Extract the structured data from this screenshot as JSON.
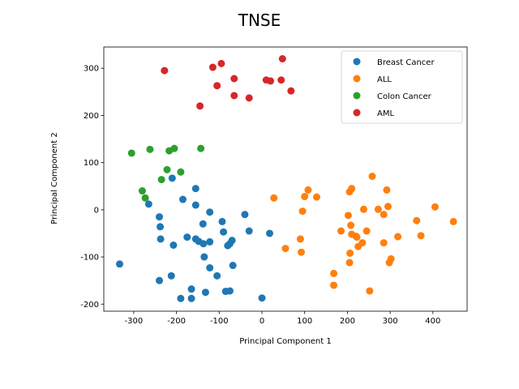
{
  "chart_data": {
    "type": "scatter",
    "title": "TNSE",
    "xlabel": "Principal Component 1",
    "ylabel": "Principal Component 2",
    "xlim": [
      -370,
      480
    ],
    "ylim": [
      -215,
      345
    ],
    "xticks": [
      -300,
      -200,
      -100,
      0,
      100,
      200,
      300,
      400
    ],
    "yticks": [
      -200,
      -100,
      0,
      100,
      200,
      300
    ],
    "grid": false,
    "legend_position": "top-right",
    "series": [
      {
        "name": "Breast Cancer",
        "color": "#1f77b4",
        "points": [
          [
            -333,
            -115
          ],
          [
            -265,
            12
          ],
          [
            -210,
            67
          ],
          [
            -240,
            -15
          ],
          [
            -238,
            -36
          ],
          [
            -237,
            -62
          ],
          [
            -207,
            -75
          ],
          [
            -240,
            -150
          ],
          [
            -212,
            -140
          ],
          [
            -190,
            -188
          ],
          [
            -165,
            -188
          ],
          [
            -165,
            -168
          ],
          [
            -185,
            22
          ],
          [
            -155,
            45
          ],
          [
            -155,
            10
          ],
          [
            -175,
            -58
          ],
          [
            -155,
            -62
          ],
          [
            -148,
            -67
          ],
          [
            -137,
            -72
          ],
          [
            -122,
            -68
          ],
          [
            -138,
            -30
          ],
          [
            -122,
            -5
          ],
          [
            -135,
            -100
          ],
          [
            -122,
            -123
          ],
          [
            -105,
            -140
          ],
          [
            -93,
            -25
          ],
          [
            -90,
            -47
          ],
          [
            -80,
            -76
          ],
          [
            -75,
            -72
          ],
          [
            -70,
            -65
          ],
          [
            -68,
            -118
          ],
          [
            -132,
            -175
          ],
          [
            -85,
            -173
          ],
          [
            -75,
            -172
          ],
          [
            -40,
            -10
          ],
          [
            -30,
            -45
          ],
          [
            18,
            -50
          ],
          [
            0,
            -187
          ]
        ]
      },
      {
        "name": "ALL",
        "color": "#ff7f0e",
        "points": [
          [
            28,
            25
          ],
          [
            55,
            -82
          ],
          [
            90,
            -62
          ],
          [
            92,
            -90
          ],
          [
            95,
            -3
          ],
          [
            100,
            28
          ],
          [
            108,
            42
          ],
          [
            128,
            27
          ],
          [
            168,
            -135
          ],
          [
            168,
            -160
          ],
          [
            185,
            -45
          ],
          [
            205,
            38
          ],
          [
            210,
            45
          ],
          [
            202,
            -12
          ],
          [
            208,
            -33
          ],
          [
            210,
            -52
          ],
          [
            220,
            -56
          ],
          [
            222,
            -58
          ],
          [
            206,
            -92
          ],
          [
            205,
            -112
          ],
          [
            225,
            -78
          ],
          [
            235,
            -70
          ],
          [
            238,
            1
          ],
          [
            245,
            -45
          ],
          [
            252,
            -172
          ],
          [
            258,
            71
          ],
          [
            272,
            1
          ],
          [
            285,
            -70
          ],
          [
            285,
            -10
          ],
          [
            292,
            42
          ],
          [
            295,
            7
          ],
          [
            298,
            -112
          ],
          [
            302,
            -104
          ],
          [
            318,
            -57
          ],
          [
            362,
            -23
          ],
          [
            372,
            -55
          ],
          [
            405,
            6
          ],
          [
            448,
            -25
          ]
        ]
      },
      {
        "name": "Colon Cancer",
        "color": "#2ca02c",
        "points": [
          [
            -305,
            120
          ],
          [
            -280,
            40
          ],
          [
            -273,
            25
          ],
          [
            -262,
            128
          ],
          [
            -235,
            64
          ],
          [
            -222,
            85
          ],
          [
            -217,
            125
          ],
          [
            -205,
            130
          ],
          [
            -190,
            80
          ],
          [
            -143,
            130
          ]
        ]
      },
      {
        "name": "AML",
        "color": "#d62728",
        "points": [
          [
            -228,
            295
          ],
          [
            -145,
            220
          ],
          [
            -115,
            302
          ],
          [
            -105,
            263
          ],
          [
            -95,
            310
          ],
          [
            -65,
            278
          ],
          [
            -65,
            242
          ],
          [
            -30,
            237
          ],
          [
            10,
            275
          ],
          [
            20,
            273
          ],
          [
            45,
            275
          ],
          [
            48,
            320
          ],
          [
            68,
            252
          ]
        ]
      }
    ]
  }
}
